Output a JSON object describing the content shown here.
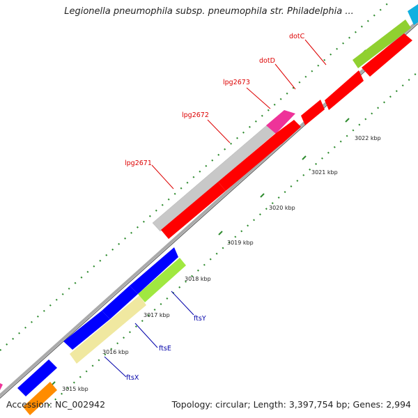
{
  "title": "Legionella pneumophila subsp. pneumophila str. Philadelphia ...",
  "footer": {
    "accession": "Accession: NC_002942",
    "topology": "Topology: circular; Length: 3,397,754 bp; Genes: 2,994"
  },
  "ticks": [
    "3015 kbp",
    "3016 kbp",
    "3017 kbp",
    "3018 kbp",
    "3019 kbp",
    "3020 kbp",
    "3021 kbp",
    "3022 kbp"
  ],
  "genes_upper_strand": [
    {
      "name": "lpg2671",
      "color": "#c8c8c8",
      "labeled": true
    },
    {
      "name": "lpg2672",
      "color": "#ee3399",
      "labeled": true
    },
    {
      "name": "lpg2673",
      "color": "#ff0000",
      "labeled": true
    },
    {
      "name": "dotD",
      "color": "#ff0000",
      "labeled": true
    },
    {
      "name": "dotC",
      "color": "#ff0000",
      "labeled": true
    }
  ],
  "genes_lower_strand": [
    {
      "name": "ftsX",
      "color": "#f0e8a0",
      "labeled": true
    },
    {
      "name": "ftsE",
      "color": "#0000ff",
      "labeled": true
    },
    {
      "name": "ftsY",
      "color": "#a0e840",
      "labeled": true
    }
  ],
  "colors": {
    "forward_label": "#dd0000",
    "reverse_label": "#0000aa",
    "tick_mark": "#2e8b2e",
    "backbone": "#888888"
  }
}
